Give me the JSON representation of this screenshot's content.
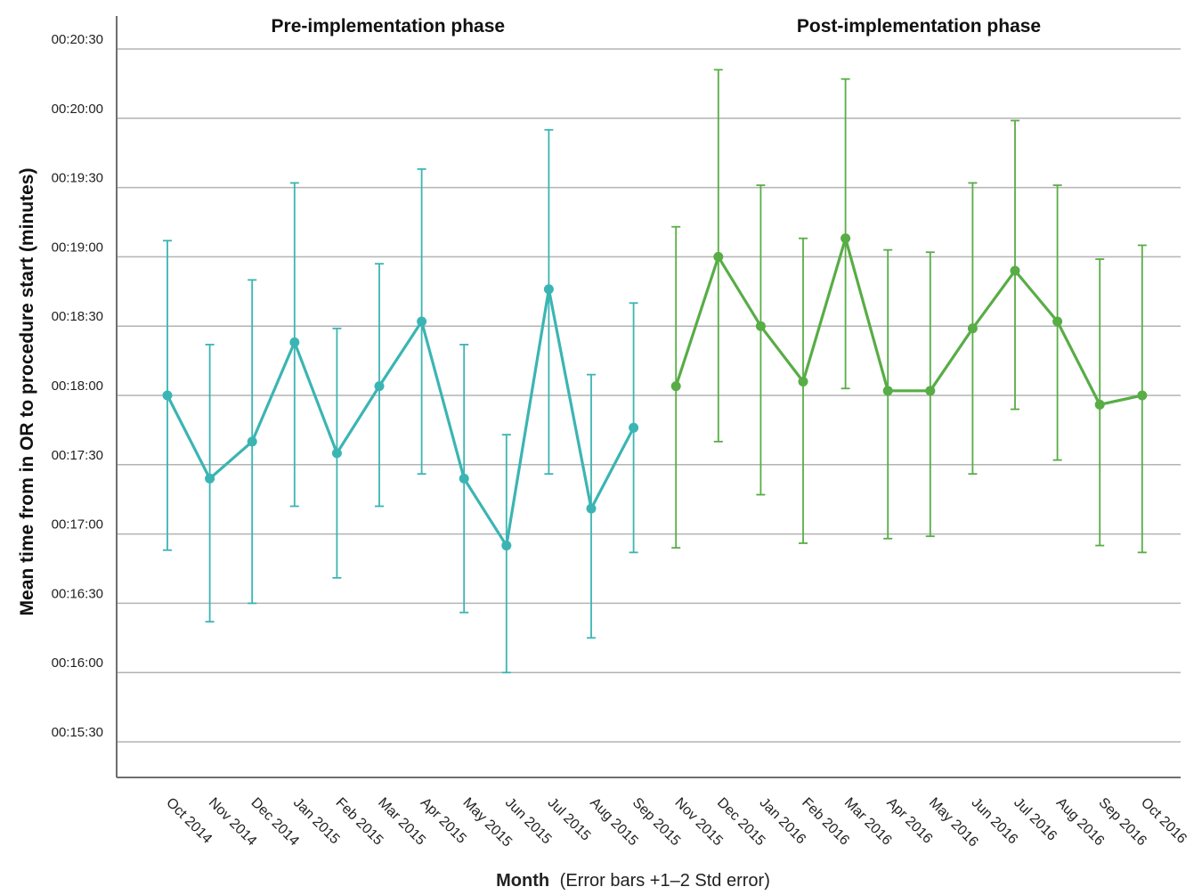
{
  "chart_data": {
    "type": "line",
    "xlabel": "Month",
    "xlabel_note": "(Error bars +1–2 Std error)",
    "ylabel": "Mean time from in OR to procedure start (minutes)",
    "ylim": [
      "00:15:15",
      "00:20:45"
    ],
    "yticks": [
      "00:15:30",
      "00:16:00",
      "00:16:30",
      "00:17:00",
      "00:17:30",
      "00:18:00",
      "00:18:30",
      "00:19:00",
      "00:19:30",
      "00:20:00",
      "00:20:30"
    ],
    "grid": true,
    "categories": [
      "Oct 2014",
      "Nov 2014",
      "Dec 2014",
      "Jan 2015",
      "Feb 2015",
      "Mar 2015",
      "Apr 2015",
      "May 2015",
      "Jun 2015",
      "Jul 2015",
      "Aug 2015",
      "Sep 2015",
      "Nov 2015",
      "Dec 2015",
      "Jan 2016",
      "Feb 2016",
      "Mar 2016",
      "Apr 2016",
      "May 2016",
      "Jun 2016",
      "Jul 2016",
      "Aug 2016",
      "Sep 2016",
      "Oct 2016"
    ],
    "phases": [
      {
        "label": "Pre-implementation phase",
        "start": 0,
        "end": 11,
        "color": "#3bb5b3"
      },
      {
        "label": "Post-implementation phase",
        "start": 12,
        "end": 23,
        "color": "#58ad46"
      }
    ],
    "series": [
      {
        "color": "#3bb5b3",
        "x": [
          "Oct 2014",
          "Nov 2014",
          "Dec 2014",
          "Jan 2015",
          "Feb 2015",
          "Mar 2015",
          "Apr 2015",
          "May 2015",
          "Jun 2015",
          "Jul 2015",
          "Aug 2015",
          "Sep 2015"
        ],
        "mean_seconds": [
          1080,
          1044,
          1060,
          1103,
          1055,
          1084,
          1112,
          1044,
          1015,
          1126,
          1031,
          1066
        ],
        "lower_seconds": [
          1013,
          982,
          990,
          1032,
          1001,
          1032,
          1046,
          986,
          960,
          1046,
          975,
          1012
        ],
        "upper_seconds": [
          1147,
          1102,
          1130,
          1172,
          1109,
          1137,
          1178,
          1102,
          1063,
          1195,
          1089,
          1120
        ]
      },
      {
        "color": "#58ad46",
        "x": [
          "Nov 2015",
          "Dec 2015",
          "Jan 2016",
          "Feb 2016",
          "Mar 2016",
          "Apr 2016",
          "May 2016",
          "Jun 2016",
          "Jul 2016",
          "Aug 2016",
          "Sep 2016",
          "Oct 2016"
        ],
        "mean_seconds": [
          1084,
          1140,
          1110,
          1086,
          1148,
          1082,
          1082,
          1109,
          1134,
          1112,
          1076,
          1080
        ],
        "lower_seconds": [
          1014,
          1060,
          1037,
          1016,
          1083,
          1018,
          1019,
          1046,
          1074,
          1052,
          1015,
          1012
        ],
        "upper_seconds": [
          1153,
          1221,
          1171,
          1148,
          1217,
          1143,
          1142,
          1172,
          1199,
          1171,
          1139,
          1145
        ]
      }
    ]
  }
}
